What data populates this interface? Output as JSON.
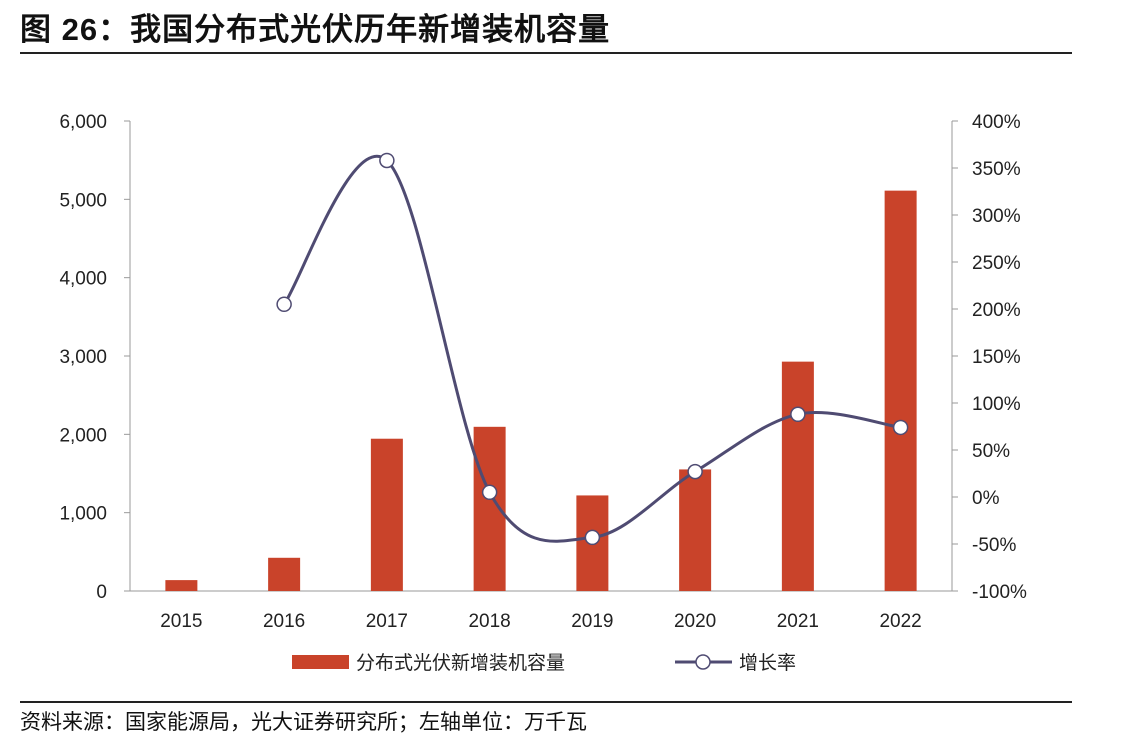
{
  "figure": {
    "title": "图 26：我国分布式光伏历年新增装机容量",
    "source": "资料来源：国家能源局，光大证券研究所；左轴单位：万千瓦"
  },
  "chart_data": {
    "type": "bar",
    "categories": [
      "2015",
      "2016",
      "2017",
      "2018",
      "2019",
      "2020",
      "2021",
      "2022"
    ],
    "series": [
      {
        "name": "分布式光伏新增装机容量",
        "type": "bar",
        "axis": "left",
        "values": [
          139,
          424,
          1944,
          2096,
          1220,
          1552,
          2928,
          5111
        ]
      },
      {
        "name": "增长率",
        "type": "line",
        "axis": "right",
        "values": [
          null,
          205,
          358,
          5,
          -43,
          27,
          88,
          74
        ]
      }
    ],
    "ylim_left": [
      0,
      6000
    ],
    "yticks_left": [
      "6,000",
      "5,000",
      "4,000",
      "3,000",
      "2,000",
      "1,000",
      "0"
    ],
    "ylim_right": [
      -100,
      400
    ],
    "yticks_right": [
      "400%",
      "350%",
      "300%",
      "250%",
      "200%",
      "150%",
      "100%",
      "50%",
      "0%",
      "-50%",
      "-100%"
    ],
    "grid": false,
    "legend_position": "bottom",
    "colors": {
      "bar": "#C9432A",
      "line": "#4F4B72",
      "marker_fill": "#ffffff"
    }
  }
}
